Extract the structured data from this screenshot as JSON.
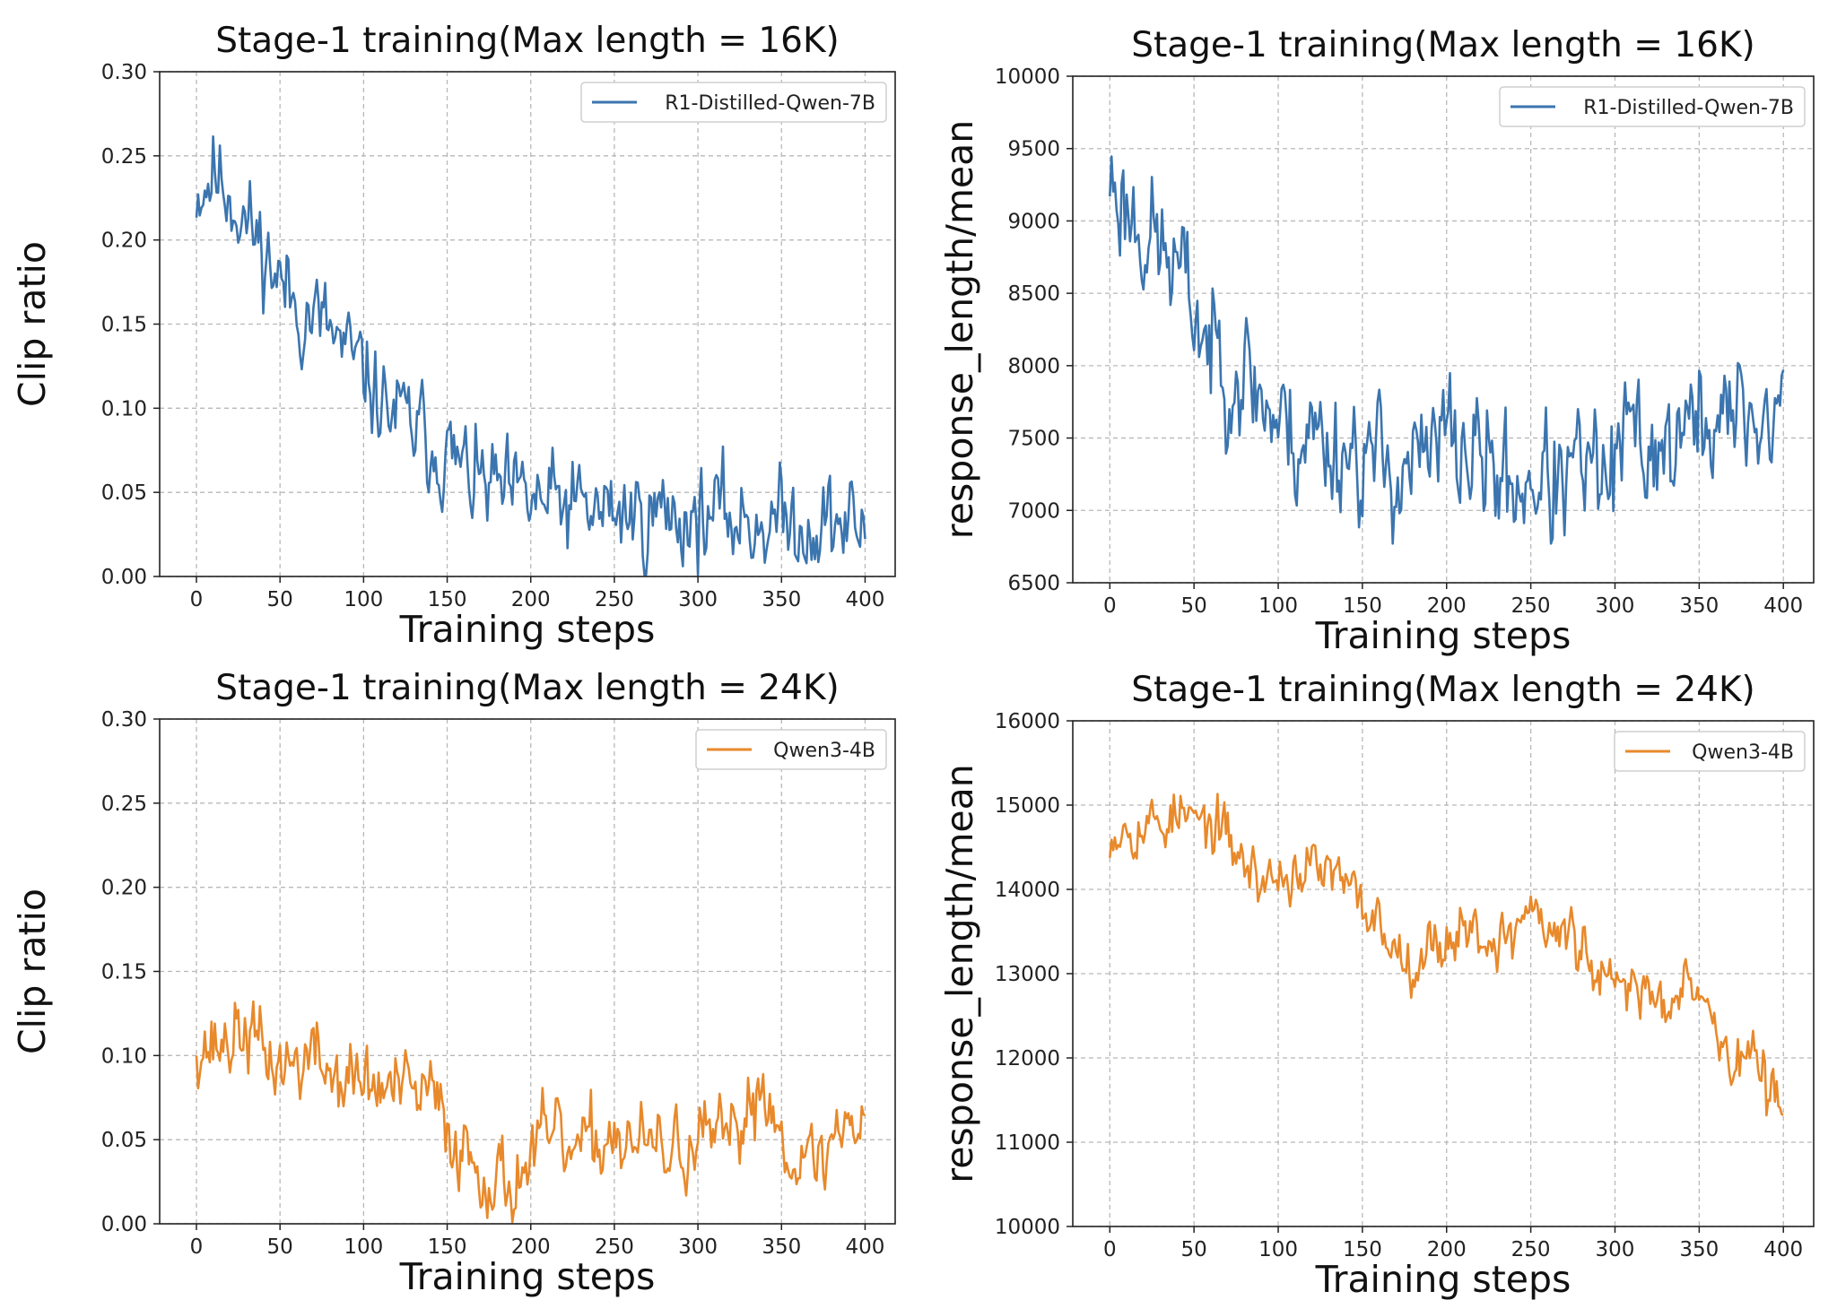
{
  "chart_data": [
    {
      "type": "line",
      "title": "Stage-1 training(Max length = 16K)",
      "xlabel": "Training steps",
      "ylabel": "Clip ratio",
      "xlim": [
        -22,
        418
      ],
      "ylim": [
        0.0,
        0.3
      ],
      "xticks": [
        0,
        50,
        100,
        150,
        200,
        250,
        300,
        350,
        400
      ],
      "xtick_labels": [
        "0",
        "50",
        "100",
        "150",
        "200",
        "250",
        "300",
        "350",
        "400"
      ],
      "yticks": [
        0.0,
        0.05,
        0.1,
        0.15,
        0.2,
        0.25,
        0.3
      ],
      "ytick_labels": [
        "0.00",
        "0.05",
        "0.10",
        "0.15",
        "0.20",
        "0.25",
        "0.30"
      ],
      "grid": true,
      "legend": "top-right",
      "series": [
        {
          "name": "R1-Distilled-Qwen-7B",
          "color": "#3b75af",
          "x": [
            0,
            10,
            20,
            30,
            40,
            50,
            60,
            70,
            80,
            90,
            100,
            110,
            120,
            130,
            140,
            150,
            160,
            170,
            180,
            190,
            200,
            210,
            220,
            230,
            240,
            250,
            260,
            270,
            280,
            290,
            300,
            310,
            320,
            330,
            340,
            350,
            360,
            370,
            380,
            390,
            400
          ],
          "y": [
            0.23,
            0.24,
            0.23,
            0.21,
            0.195,
            0.175,
            0.16,
            0.155,
            0.145,
            0.13,
            0.12,
            0.105,
            0.095,
            0.088,
            0.08,
            0.072,
            0.063,
            0.055,
            0.05,
            0.045,
            0.045,
            0.043,
            0.042,
            0.04,
            0.038,
            0.04,
            0.037,
            0.036,
            0.038,
            0.036,
            0.035,
            0.037,
            0.035,
            0.033,
            0.034,
            0.032,
            0.033,
            0.031,
            0.032,
            0.03,
            0.03
          ],
          "noise": 0.022,
          "seed": 11
        }
      ]
    },
    {
      "type": "line",
      "title": "Stage-1 training(Max length = 16K)",
      "xlabel": "Training steps",
      "ylabel": "response_length/mean",
      "xlim": [
        -22,
        418
      ],
      "ylim": [
        6500,
        10000
      ],
      "xticks": [
        0,
        50,
        100,
        150,
        200,
        250,
        300,
        350,
        400
      ],
      "xtick_labels": [
        "0",
        "50",
        "100",
        "150",
        "200",
        "250",
        "300",
        "350",
        "400"
      ],
      "yticks": [
        6500,
        7000,
        7500,
        8000,
        8500,
        9000,
        9500,
        10000
      ],
      "ytick_labels": [
        "6500",
        "7000",
        "7500",
        "8000",
        "8500",
        "9000",
        "9500",
        "10000"
      ],
      "grid": true,
      "legend": "top-right",
      "series": [
        {
          "name": "R1-Distilled-Qwen-7B",
          "color": "#3b75af",
          "x": [
            0,
            10,
            20,
            30,
            40,
            50,
            60,
            70,
            80,
            90,
            100,
            110,
            120,
            130,
            140,
            150,
            160,
            170,
            180,
            190,
            200,
            210,
            220,
            230,
            240,
            250,
            260,
            270,
            280,
            290,
            300,
            310,
            320,
            330,
            340,
            350,
            360,
            370,
            380,
            390,
            400
          ],
          "y": [
            9300,
            9100,
            8950,
            8800,
            8650,
            8400,
            8100,
            8050,
            7950,
            7800,
            7600,
            7500,
            7550,
            7450,
            7450,
            7400,
            7300,
            7300,
            7350,
            7300,
            7550,
            7400,
            7350,
            7250,
            7150,
            7250,
            7200,
            7150,
            7300,
            7200,
            7250,
            7550,
            7450,
            7450,
            7500,
            7600,
            7650,
            7600,
            7700,
            7600,
            7700
          ],
          "noise": 340,
          "seed": 23
        }
      ]
    },
    {
      "type": "line",
      "title": "Stage-1 training(Max length = 24K)",
      "xlabel": "Training steps",
      "ylabel": "Clip ratio",
      "xlim": [
        -22,
        418
      ],
      "ylim": [
        0.0,
        0.3
      ],
      "xticks": [
        0,
        50,
        100,
        150,
        200,
        250,
        300,
        350,
        400
      ],
      "xtick_labels": [
        "0",
        "50",
        "100",
        "150",
        "200",
        "250",
        "300",
        "350",
        "400"
      ],
      "yticks": [
        0.0,
        0.05,
        0.1,
        0.15,
        0.2,
        0.25,
        0.3
      ],
      "ytick_labels": [
        "0.00",
        "0.05",
        "0.10",
        "0.15",
        "0.20",
        "0.25",
        "0.30"
      ],
      "grid": true,
      "legend": "top-right",
      "series": [
        {
          "name": "Qwen3-4B",
          "color": "#e8892b",
          "x": [
            0,
            10,
            20,
            30,
            40,
            50,
            60,
            70,
            80,
            90,
            100,
            110,
            120,
            130,
            140,
            150,
            160,
            170,
            180,
            190,
            200,
            210,
            220,
            230,
            240,
            250,
            260,
            270,
            280,
            290,
            300,
            310,
            320,
            330,
            340,
            350,
            360,
            370,
            380,
            390,
            400
          ],
          "y": [
            0.11,
            0.105,
            0.11,
            0.115,
            0.1,
            0.095,
            0.095,
            0.1,
            0.09,
            0.085,
            0.085,
            0.08,
            0.08,
            0.075,
            0.078,
            0.055,
            0.045,
            0.035,
            0.025,
            0.025,
            0.04,
            0.05,
            0.045,
            0.04,
            0.05,
            0.055,
            0.048,
            0.045,
            0.042,
            0.045,
            0.045,
            0.05,
            0.045,
            0.07,
            0.085,
            0.05,
            0.045,
            0.03,
            0.05,
            0.06,
            0.07
          ],
          "noise": 0.018,
          "seed": 37
        }
      ]
    },
    {
      "type": "line",
      "title": "Stage-1 training(Max length = 24K)",
      "xlabel": "Training steps",
      "ylabel": "response_length/mean",
      "xlim": [
        -22,
        418
      ],
      "ylim": [
        10000,
        16000
      ],
      "xticks": [
        0,
        50,
        100,
        150,
        200,
        250,
        300,
        350,
        400
      ],
      "xtick_labels": [
        "0",
        "50",
        "100",
        "150",
        "200",
        "250",
        "300",
        "350",
        "400"
      ],
      "yticks": [
        10000,
        11000,
        12000,
        13000,
        14000,
        15000,
        16000
      ],
      "ytick_labels": [
        "10000",
        "11000",
        "12000",
        "13000",
        "14000",
        "15000",
        "16000"
      ],
      "grid": true,
      "legend": "top-right",
      "series": [
        {
          "name": "Qwen3-4B",
          "color": "#e8892b",
          "x": [
            0,
            10,
            20,
            30,
            40,
            50,
            60,
            70,
            80,
            90,
            100,
            110,
            120,
            130,
            140,
            150,
            160,
            170,
            180,
            190,
            200,
            210,
            220,
            230,
            240,
            250,
            260,
            270,
            280,
            290,
            300,
            310,
            320,
            330,
            340,
            350,
            360,
            370,
            380,
            390,
            400
          ],
          "y": [
            14700,
            14800,
            14750,
            14800,
            14900,
            14800,
            14750,
            14600,
            14300,
            14100,
            14150,
            14200,
            14250,
            14200,
            14000,
            13800,
            13600,
            13300,
            13200,
            13300,
            13400,
            13600,
            13450,
            13400,
            13450,
            13900,
            13400,
            13500,
            13300,
            12900,
            12800,
            12900,
            12800,
            12600,
            13100,
            12900,
            12300,
            11900,
            12100,
            11600,
            11400
          ],
          "noise": 260,
          "seed": 53
        }
      ]
    }
  ]
}
